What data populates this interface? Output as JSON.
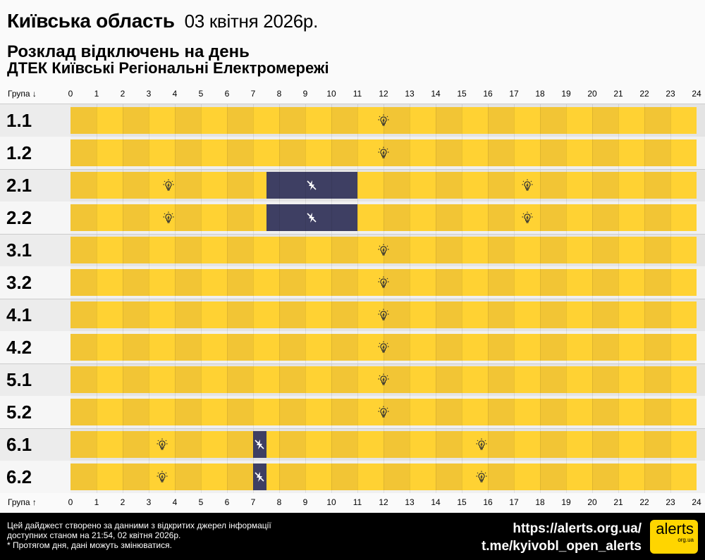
{
  "header": {
    "region": "Київська область",
    "date": "03 квітня 2026р.",
    "subtitle": "Розклад відключень на день",
    "company": "ДТЕК Київські Регіональні Електромережі"
  },
  "axis": {
    "top_label": "Група ↓",
    "bottom_label": "Група ↑",
    "hours": [
      "0",
      "1",
      "2",
      "3",
      "4",
      "5",
      "6",
      "7",
      "8",
      "9",
      "10",
      "11",
      "12",
      "13",
      "14",
      "15",
      "16",
      "17",
      "18",
      "19",
      "20",
      "21",
      "22",
      "23",
      "24"
    ]
  },
  "colors": {
    "on_a": "#f2c535",
    "on_b": "#ffd233",
    "off": "#3e3f63",
    "row_a": "#ececec",
    "row_b": "#f6f6f6"
  },
  "groups": [
    {
      "name": "1.1",
      "segments": [
        {
          "from": 0,
          "to": 24,
          "state": "on"
        }
      ]
    },
    {
      "name": "1.2",
      "segments": [
        {
          "from": 0,
          "to": 24,
          "state": "on"
        }
      ]
    },
    {
      "name": "2.1",
      "segments": [
        {
          "from": 0,
          "to": 7.5,
          "state": "on"
        },
        {
          "from": 7.5,
          "to": 11,
          "state": "off"
        },
        {
          "from": 11,
          "to": 24,
          "state": "on"
        }
      ]
    },
    {
      "name": "2.2",
      "segments": [
        {
          "from": 0,
          "to": 7.5,
          "state": "on"
        },
        {
          "from": 7.5,
          "to": 11,
          "state": "off"
        },
        {
          "from": 11,
          "to": 24,
          "state": "on"
        }
      ]
    },
    {
      "name": "3.1",
      "segments": [
        {
          "from": 0,
          "to": 24,
          "state": "on"
        }
      ]
    },
    {
      "name": "3.2",
      "segments": [
        {
          "from": 0,
          "to": 24,
          "state": "on"
        }
      ]
    },
    {
      "name": "4.1",
      "segments": [
        {
          "from": 0,
          "to": 24,
          "state": "on"
        }
      ]
    },
    {
      "name": "4.2",
      "segments": [
        {
          "from": 0,
          "to": 24,
          "state": "on"
        }
      ]
    },
    {
      "name": "5.1",
      "segments": [
        {
          "from": 0,
          "to": 24,
          "state": "on"
        }
      ]
    },
    {
      "name": "5.2",
      "segments": [
        {
          "from": 0,
          "to": 24,
          "state": "on"
        }
      ]
    },
    {
      "name": "6.1",
      "segments": [
        {
          "from": 0,
          "to": 7,
          "state": "on"
        },
        {
          "from": 7,
          "to": 7.5,
          "state": "off"
        },
        {
          "from": 7.5,
          "to": 24,
          "state": "on"
        }
      ]
    },
    {
      "name": "6.2",
      "segments": [
        {
          "from": 0,
          "to": 7,
          "state": "on"
        },
        {
          "from": 7,
          "to": 7.5,
          "state": "off"
        },
        {
          "from": 7.5,
          "to": 24,
          "state": "on"
        }
      ]
    }
  ],
  "footer": {
    "note1": "Цей дайджест створено за данними з відкритих джерел інформації",
    "note2": "доступних станом на 21:54, 02 квітня 2026р.",
    "note3": "* Протягом дня, дані можуть змінюватися.",
    "link1": "https://alerts.org.ua/",
    "link2": "t.me/kyivobl_open_alerts",
    "logo_main": "alerts",
    "logo_sub": "org.ua"
  }
}
